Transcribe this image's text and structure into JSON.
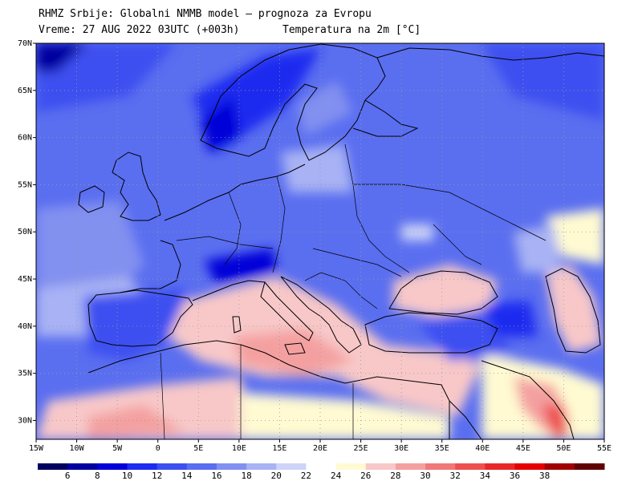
{
  "header": {
    "line1": "RHMZ Srbije: Globalni NMMB model — prognoza za Evropu",
    "line2": "Vreme: 27 AUG 2022 03UTC (+003h)",
    "line3": "Temperatura na 2m [°C]"
  },
  "map_axes": {
    "lon_range": [
      -15,
      55
    ],
    "lat_range": [
      28,
      70
    ],
    "lon_ticks": [
      "15W",
      "10W",
      "5W",
      "0",
      "5E",
      "10E",
      "15E",
      "20E",
      "25E",
      "30E",
      "35E",
      "40E",
      "45E",
      "50E",
      "55E"
    ],
    "lat_ticks": [
      "30N",
      "35N",
      "40N",
      "45N",
      "50N",
      "55N",
      "60N",
      "65N",
      "70N"
    ],
    "grid": true
  },
  "colorbar": {
    "labels": [
      "6",
      "8",
      "10",
      "12",
      "14",
      "16",
      "18",
      "20",
      "22",
      "24",
      "26",
      "28",
      "30",
      "32",
      "34",
      "36",
      "38"
    ],
    "colors": [
      "#000060",
      "#0000a0",
      "#0000d8",
      "#1e2cf0",
      "#3c50f0",
      "#5a6ef0",
      "#8290f0",
      "#a8b2f4",
      "#cdd4f8",
      "#ffffff",
      "#fffad2",
      "#f8c8c8",
      "#f4a0a0",
      "#f07878",
      "#ee5050",
      "#e82828",
      "#e60000",
      "#a00000",
      "#600000"
    ]
  }
}
